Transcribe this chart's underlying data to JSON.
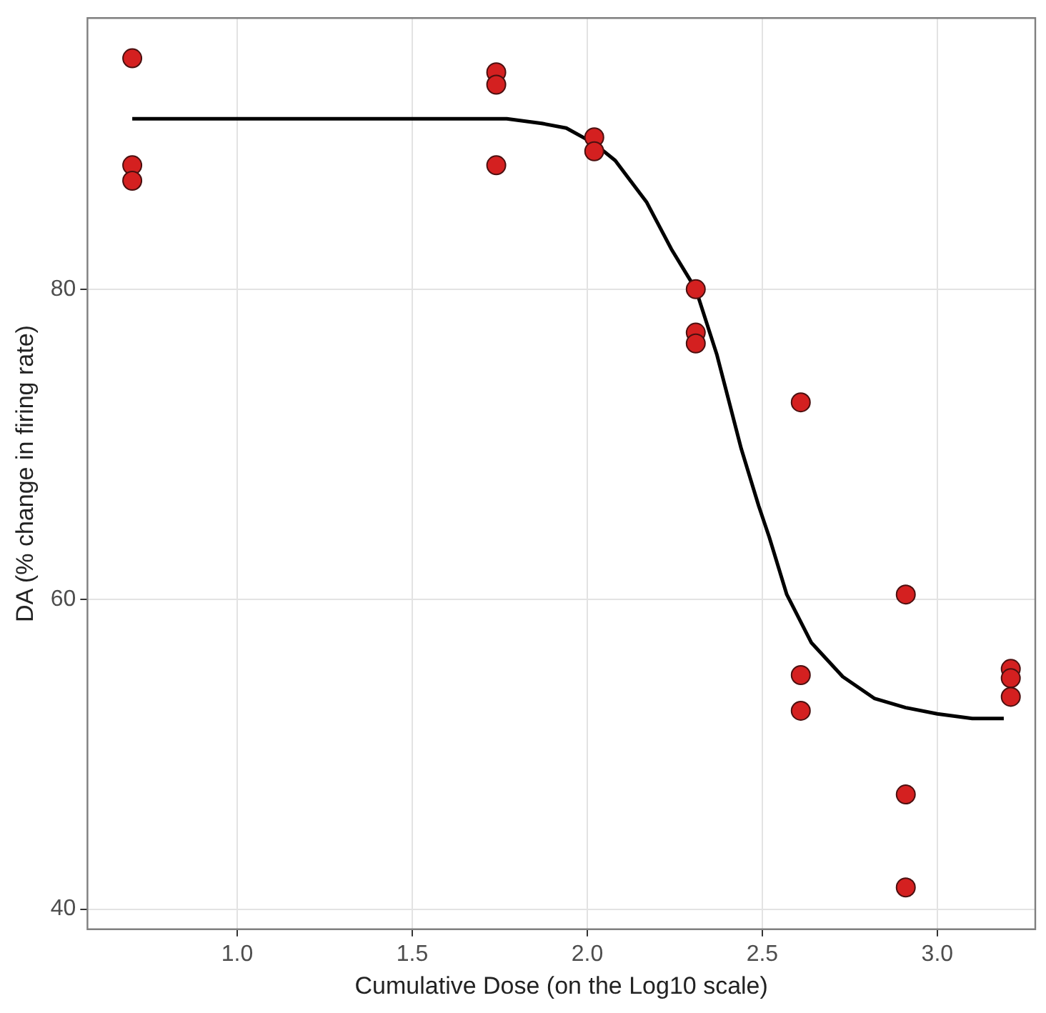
{
  "chart_data": {
    "type": "scatter",
    "xlabel": "Cumulative Dose (on the Log10 scale)",
    "ylabel": "DA (% change in firing rate)",
    "xlim": [
      0.572,
      3.28
    ],
    "ylim": [
      38.7,
      97.5
    ],
    "xticks": [
      {
        "value": 1,
        "label": "1.0"
      },
      1.5,
      {
        "value": 2,
        "label": "2.0"
      },
      2.5,
      {
        "value": 3,
        "label": "3.0"
      }
    ],
    "yticks": [
      40,
      60,
      80
    ],
    "grid": true,
    "legend": false,
    "series": [
      {
        "marker": "circle",
        "color": "#d42020",
        "x": [
          0.7,
          0.7,
          0.7,
          1.74,
          1.74,
          1.74,
          2.02,
          2.02,
          2.31,
          2.31,
          2.31,
          2.61,
          2.61,
          2.61,
          2.91,
          2.91,
          2.91,
          3.21,
          3.21,
          3.21
        ],
        "values": [
          94.9,
          88.0,
          87.0,
          94.0,
          93.2,
          88.0,
          89.8,
          88.9,
          80.0,
          77.2,
          76.5,
          72.7,
          55.1,
          52.8,
          60.3,
          47.4,
          41.4,
          55.5,
          54.9,
          53.7
        ]
      },
      {
        "type": "line",
        "marker": "none",
        "line_style": "solid",
        "color": "#000000",
        "x": [
          0.7,
          1.5,
          1.77,
          1.87,
          1.94,
          2.02,
          2.08,
          2.17,
          2.24,
          2.31,
          2.37,
          2.44,
          2.49,
          2.52,
          2.57,
          2.64,
          2.73,
          2.82,
          2.91,
          3.0,
          3.1,
          3.19
        ],
        "values": [
          91.0,
          91.0,
          91.0,
          90.7,
          90.4,
          89.4,
          88.3,
          85.6,
          82.6,
          80.0,
          75.8,
          69.7,
          66.0,
          64.0,
          60.3,
          57.2,
          55.0,
          53.6,
          53.0,
          52.6,
          52.3,
          52.3
        ]
      }
    ]
  }
}
